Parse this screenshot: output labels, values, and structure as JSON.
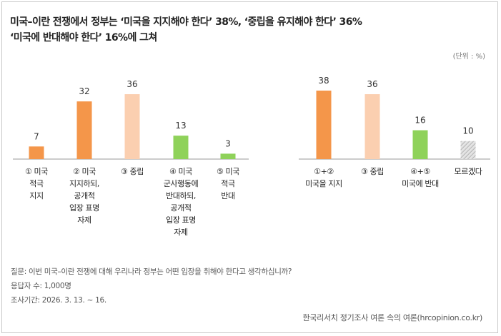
{
  "title": {
    "line1": "미국–이란 전쟁에서 정부는 ‘미국을 지지해야 한다’ 38%, ‘중립을 유지해야 한다’ 36%",
    "line2": "‘미국에 반대해야 한다’ 16%에 그쳐"
  },
  "unit_label": "(단위 : %)",
  "colors": {
    "orange": "#f4964a",
    "peach": "#fbcfb0",
    "green": "#8fd25a",
    "gray_hatch": "#c8c8c8",
    "axis": "#999999"
  },
  "chart_data": {
    "type": "bar",
    "ylabel": "%",
    "ylim": [
      0,
      40
    ],
    "groups": [
      {
        "name": "detailed",
        "categories": [
          "① 미국\n적극\n지지",
          "② 미국\n지지하되,\n공개적\n입장 표명\n자제",
          "③ 중립",
          "④ 미국\n군사행동에\n반대하되,\n공개적\n입장 표명\n자제",
          "⑤ 미국\n적극\n반대"
        ],
        "values": [
          7,
          32,
          36,
          13,
          3
        ],
        "fills": [
          "orange",
          "orange",
          "peach",
          "green",
          "green"
        ]
      },
      {
        "name": "summary",
        "categories": [
          "①+②\n미국을 지지",
          "③ 중립",
          "④+⑤\n미국에 반대",
          "모르겠다"
        ],
        "values": [
          38,
          36,
          16,
          10
        ],
        "fills": [
          "orange",
          "peach",
          "green",
          "hatch"
        ]
      }
    ]
  },
  "notes": {
    "question": "질문:  이번 미국–이란 전쟁에 대해 우리나라 정부는 어떤 입장을 취해야 한다고 생각하십니까?",
    "sample": "응답자 수: 1,000명",
    "period": "조사기간: 2026. 3. 13. ~ 16."
  },
  "source": "한국리서치 정기조사 여론 속의 여론(hrcopinion.co.kr)"
}
